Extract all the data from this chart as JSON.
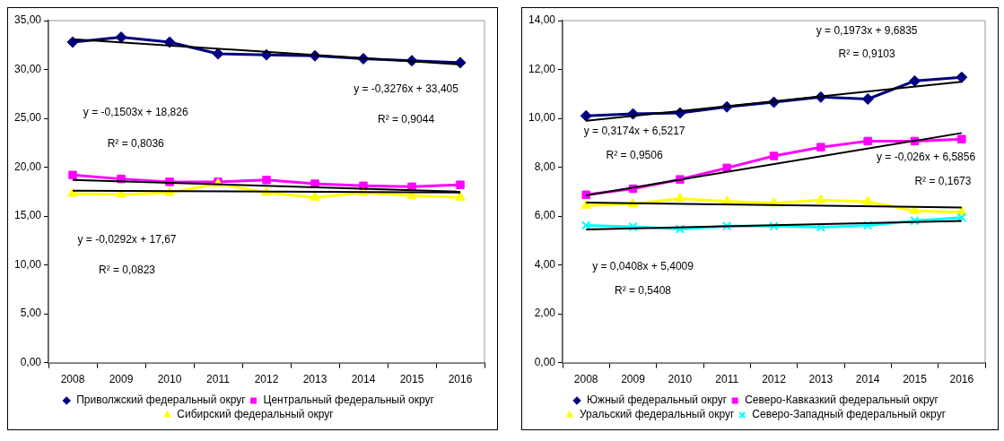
{
  "chart_data": [
    {
      "type": "line",
      "categories": [
        "2008",
        "2009",
        "2010",
        "2011",
        "2012",
        "2013",
        "2014",
        "2015",
        "2016"
      ],
      "ylim": [
        0,
        35
      ],
      "yticks": [
        {
          "value": 0,
          "label": "0,00"
        },
        {
          "value": 5,
          "label": "5,00"
        },
        {
          "value": 10,
          "label": "10,00"
        },
        {
          "value": 15,
          "label": "15,00"
        },
        {
          "value": 20,
          "label": "20,00"
        },
        {
          "value": 25,
          "label": "25,00"
        },
        {
          "value": 30,
          "label": "30,00"
        },
        {
          "value": 35,
          "label": "35,00"
        }
      ],
      "grid": false,
      "legend": "bottom",
      "series": [
        {
          "name": "Приволжский федеральный округ",
          "color": "#000080",
          "marker": "diamond",
          "values": [
            32.8,
            33.3,
            32.8,
            31.6,
            31.5,
            31.4,
            31.1,
            30.9,
            30.7
          ]
        },
        {
          "name": "Центральный федеральный округ",
          "color": "#ff00ff",
          "marker": "square",
          "values": [
            19.2,
            18.8,
            18.5,
            18.5,
            18.7,
            18.3,
            18.1,
            18.0,
            18.2
          ]
        },
        {
          "name": "Сибирский федеральный округ",
          "color": "#ffff00",
          "marker": "triangle",
          "values": [
            17.3,
            17.2,
            17.4,
            18.3,
            17.4,
            16.9,
            17.4,
            17.1,
            16.9
          ]
        },
        {
          "type": "line",
          "color": "#000000",
          "marker": "none",
          "values": [
            33.1,
            null,
            null,
            null,
            null,
            null,
            null,
            null,
            30.5
          ]
        },
        {
          "type": "line",
          "color": "#000000",
          "marker": "none",
          "values": [
            18.7,
            null,
            null,
            null,
            null,
            null,
            null,
            null,
            17.5
          ]
        },
        {
          "type": "line",
          "color": "#000000",
          "marker": "none",
          "values": [
            17.6,
            null,
            null,
            null,
            null,
            null,
            null,
            null,
            17.4
          ]
        }
      ],
      "annotations": [
        "y = -0,3276x + 33,405",
        "R² = 0,9044",
        "y = -0,1503x + 18,826",
        "R² = 0,8036",
        "y = -0,0292x + 17,67",
        "R² = 0,0823"
      ]
    },
    {
      "type": "line",
      "categories": [
        "2008",
        "2009",
        "2010",
        "2011",
        "2012",
        "2013",
        "2014",
        "2015",
        "2016"
      ],
      "ylim": [
        0,
        14
      ],
      "yticks": [
        {
          "value": 0,
          "label": "0,00"
        },
        {
          "value": 2,
          "label": "2,00"
        },
        {
          "value": 4,
          "label": "4,00"
        },
        {
          "value": 6,
          "label": "6,00"
        },
        {
          "value": 8,
          "label": "8,00"
        },
        {
          "value": 10,
          "label": "10,00"
        },
        {
          "value": 12,
          "label": "12,00"
        },
        {
          "value": 14,
          "label": "14,00"
        }
      ],
      "grid": false,
      "legend": "bottom",
      "series": [
        {
          "name": "Южный федеральный округ",
          "color": "#000080",
          "marker": "diamond",
          "values": [
            10.1,
            10.18,
            10.22,
            10.47,
            10.66,
            10.87,
            10.79,
            11.53,
            11.68
          ]
        },
        {
          "name": "Северо-Кавказкий федеральный округ",
          "color": "#ff00ff",
          "marker": "square",
          "values": [
            6.87,
            7.12,
            7.5,
            7.97,
            8.46,
            8.82,
            9.07,
            9.07,
            9.15
          ]
        },
        {
          "name": "Уральский федеральный округ",
          "color": "#ffff00",
          "marker": "triangle",
          "values": [
            6.43,
            6.5,
            6.72,
            6.6,
            6.53,
            6.65,
            6.59,
            6.21,
            6.16
          ]
        },
        {
          "name": "Северо-Западный федеральный округ",
          "color": "#00ffff",
          "marker": "cross",
          "values": [
            5.62,
            5.56,
            5.47,
            5.59,
            5.59,
            5.54,
            5.62,
            5.81,
            5.94
          ]
        },
        {
          "type": "line",
          "color": "#000000",
          "marker": "none",
          "values": [
            9.9,
            null,
            null,
            null,
            null,
            null,
            null,
            null,
            11.5
          ]
        },
        {
          "type": "line",
          "color": "#000000",
          "marker": "none",
          "values": [
            6.85,
            null,
            null,
            null,
            null,
            null,
            null,
            null,
            9.4
          ]
        },
        {
          "type": "line",
          "color": "#000000",
          "marker": "none",
          "values": [
            6.55,
            null,
            null,
            null,
            null,
            null,
            null,
            null,
            6.35
          ]
        },
        {
          "type": "line",
          "color": "#000000",
          "marker": "none",
          "values": [
            5.45,
            null,
            null,
            null,
            null,
            null,
            null,
            null,
            5.8
          ]
        }
      ],
      "annotations": [
        "y = 0,1973x + 9,6835",
        "R² = 0,9103",
        "y = 0,3174x + 6,5217",
        "R² = 0,9506",
        "y = -0,026x + 6,5856",
        "R² = 0,1673",
        "y = 0,0408x + 5,4009",
        "R² = 0,5408"
      ]
    }
  ]
}
